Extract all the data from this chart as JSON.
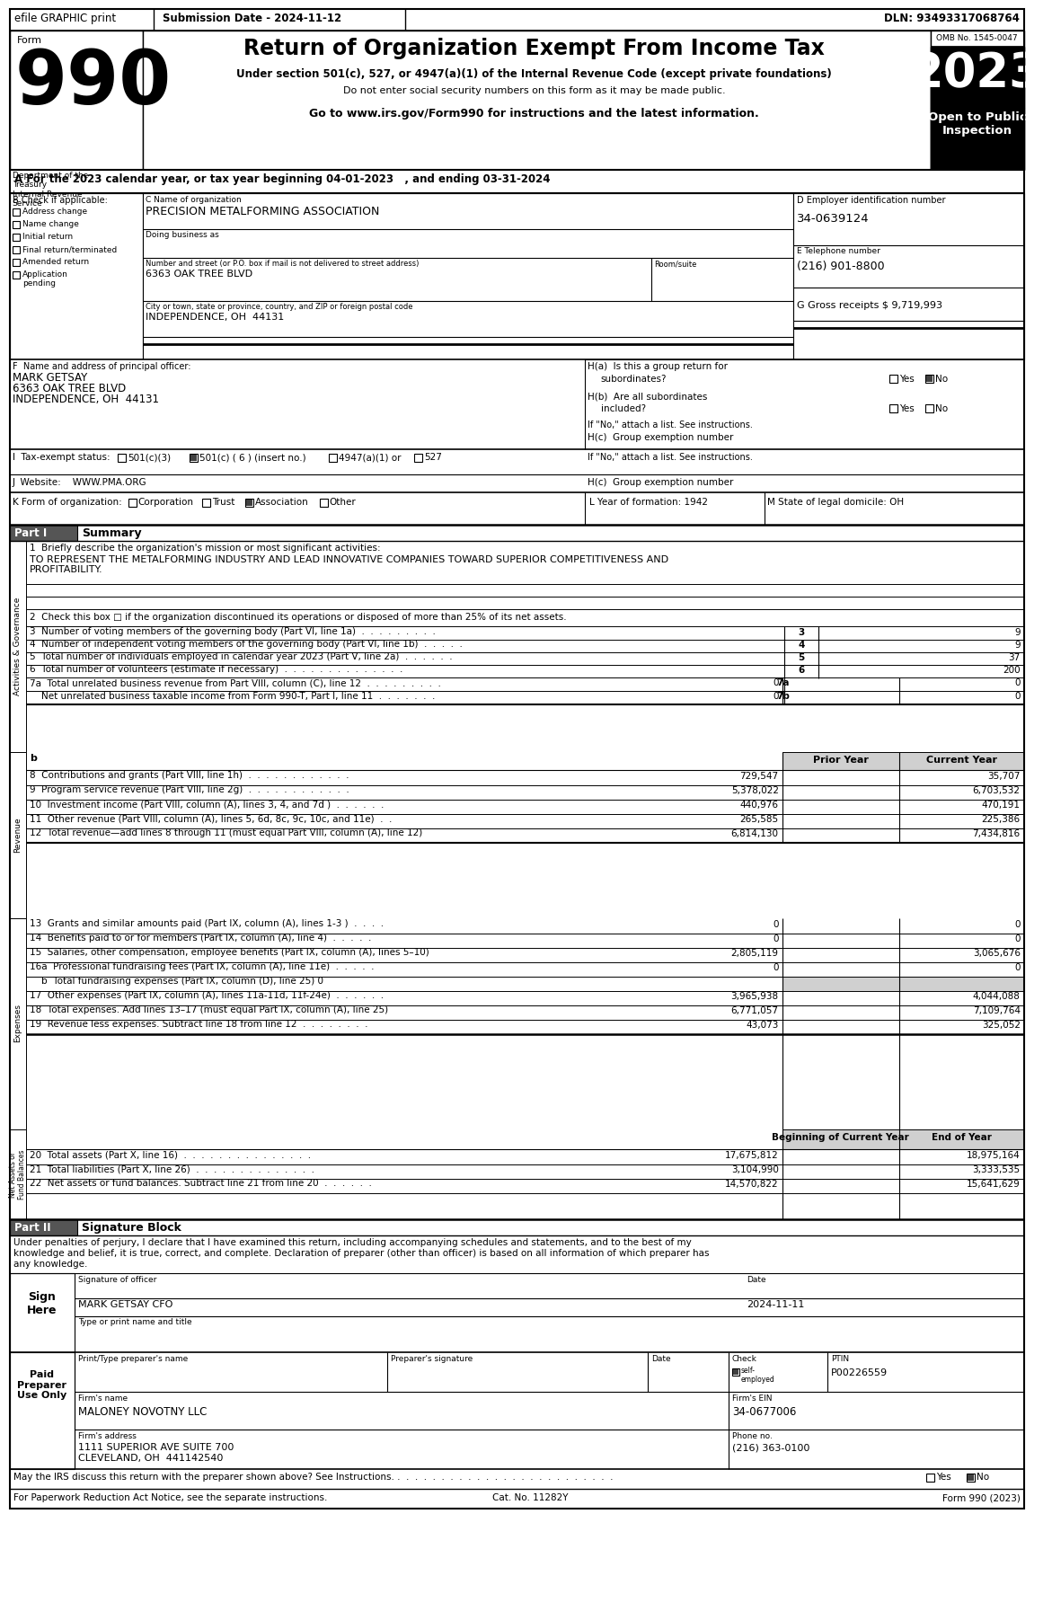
{
  "dln": "DLN: 93493317068764",
  "submission_date": "Submission Date - 2024-11-12",
  "efile": "efile GRAPHIC print",
  "form_number": "990",
  "title": "Return of Organization Exempt From Income Tax",
  "subtitle1": "Under section 501(c), 527, or 4947(a)(1) of the Internal Revenue Code (except private foundations)",
  "subtitle2": "Do not enter social security numbers on this form as it may be made public.",
  "subtitle3": "Go to www.irs.gov/Form990 for instructions and the latest information.",
  "omb": "OMB No. 1545-0047",
  "year": "2023",
  "open_to_public": "Open to Public\nInspection",
  "dept": "Department of the\nTreasury\nInternal Revenue\nService",
  "tax_year_line": "A For the 2023 calendar year, or tax year beginning 04-01-2023   , and ending 03-31-2024",
  "org_name": "PRECISION METALFORMING ASSOCIATION",
  "ein": "34-0639124",
  "phone": "(216) 901-8800",
  "gross_receipts": "9,719,993",
  "officer_name": "MARK GETSAY",
  "officer_street": "6363 OAK TREE BLVD",
  "officer_city": "INDEPENDENCE, OH  44131",
  "street": "6363 OAK TREE BLVD",
  "city": "INDEPENDENCE, OH  44131",
  "website": "WWW.PMA.ORG",
  "year_formation": "1942",
  "state_domicile": "OH",
  "mission": "TO REPRESENT THE METALFORMING INDUSTRY AND LEAD INNOVATIVE COMPANIES TOWARD SUPERIOR COMPETITIVENESS AND\nPROFITABILITY.",
  "line3_val": "9",
  "line4_val": "9",
  "line5_val": "37",
  "line6_val": "200",
  "line8_prior": "729,547",
  "line8_current": "35,707",
  "line9_prior": "5,378,022",
  "line9_current": "6,703,532",
  "line10_prior": "440,976",
  "line10_current": "470,191",
  "line11_prior": "265,585",
  "line11_current": "225,386",
  "line12_prior": "6,814,130",
  "line12_current": "7,434,816",
  "line13_prior": "0",
  "line13_current": "0",
  "line14_prior": "0",
  "line14_current": "0",
  "line15_prior": "2,805,119",
  "line15_current": "3,065,676",
  "line16a_prior": "0",
  "line16a_current": "0",
  "line17_prior": "3,965,938",
  "line17_current": "4,044,088",
  "line18_prior": "6,771,057",
  "line18_current": "7,109,764",
  "line19_prior": "43,073",
  "line19_current": "325,052",
  "line20_beg": "17,675,812",
  "line20_end": "18,975,164",
  "line21_beg": "3,104,990",
  "line21_end": "3,333,535",
  "line22_beg": "14,570,822",
  "line22_end": "15,641,629",
  "sig_date": "2024-11-11",
  "sig_name": "MARK GETSAY CFO",
  "prep_ptin": "P00226559",
  "prep_firm": "MALONEY NOVOTNY LLC",
  "prep_firm_ein": "34-0677006",
  "prep_addr": "1111 SUPERIOR AVE SUITE 700",
  "prep_city": "CLEVELAND, OH  441142540",
  "prep_phone": "(216) 363-0100",
  "bg_gray": "#d0d0d0",
  "bg_dark": "#000000",
  "bg_mid": "#555555"
}
